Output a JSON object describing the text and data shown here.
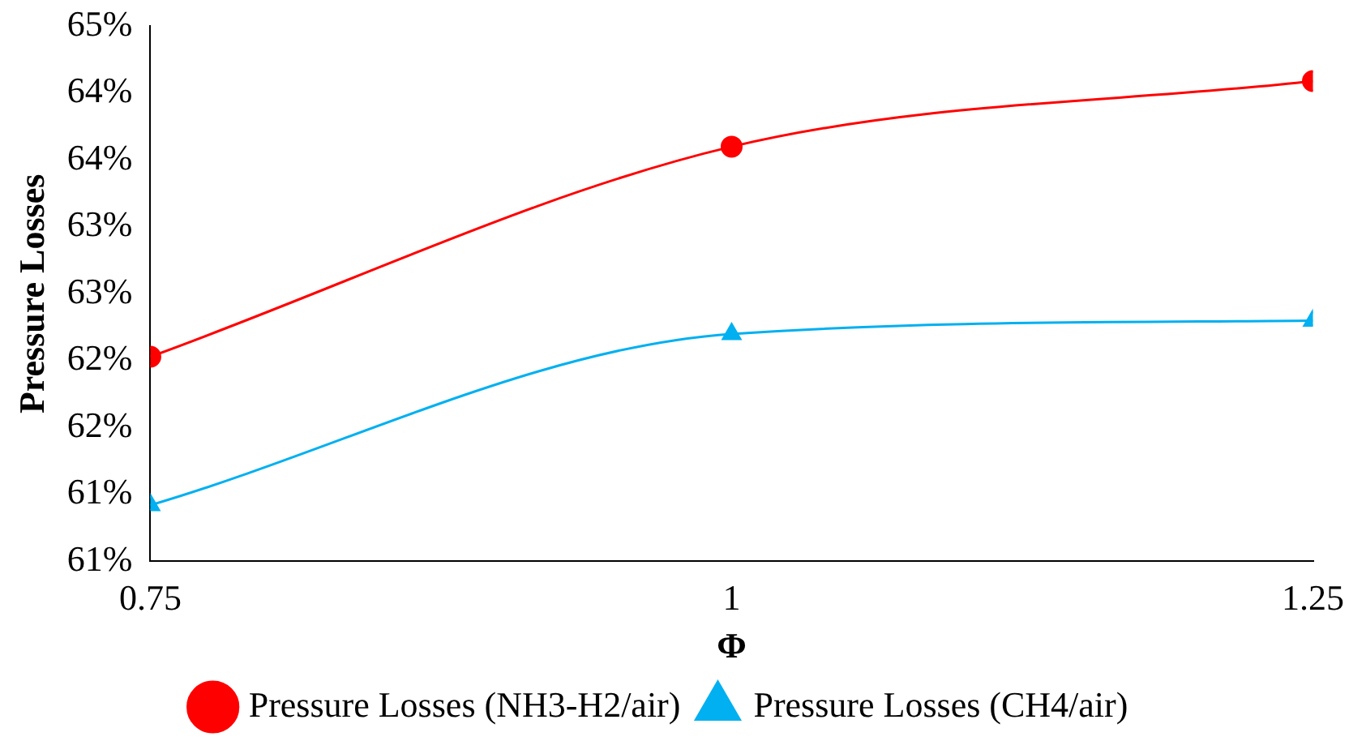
{
  "chart_data": {
    "type": "line",
    "xlabel": "Φ",
    "ylabel": "Pressure Losses",
    "x": [
      0.75,
      1,
      1.25
    ],
    "series": [
      {
        "name": "Pressure Losses (NH3-H2/air)",
        "color": "#ff0000",
        "marker": "circle",
        "values": [
          62.03,
          63.6,
          64.09
        ]
      },
      {
        "name": "Pressure Losses (CH4/air)",
        "color": "#00b0f0",
        "marker": "triangle",
        "values": [
          60.92,
          62.2,
          62.3
        ]
      }
    ],
    "xlim": [
      0.75,
      1.25
    ],
    "xticks": [
      0.75,
      1,
      1.25
    ],
    "ylim": [
      60.5,
      64.5
    ],
    "yticks": [
      {
        "value": 60.5,
        "label": "61%"
      },
      {
        "value": 61,
        "label": "61%"
      },
      {
        "value": 61.5,
        "label": "62%"
      },
      {
        "value": 62,
        "label": "62%"
      },
      {
        "value": 62.5,
        "label": "63%"
      },
      {
        "value": 63,
        "label": "63%"
      },
      {
        "value": 63.5,
        "label": "64%"
      },
      {
        "value": 64,
        "label": "64%"
      },
      {
        "value": 64.5,
        "label": "65%"
      }
    ],
    "grid": false,
    "legend": "bottom"
  }
}
